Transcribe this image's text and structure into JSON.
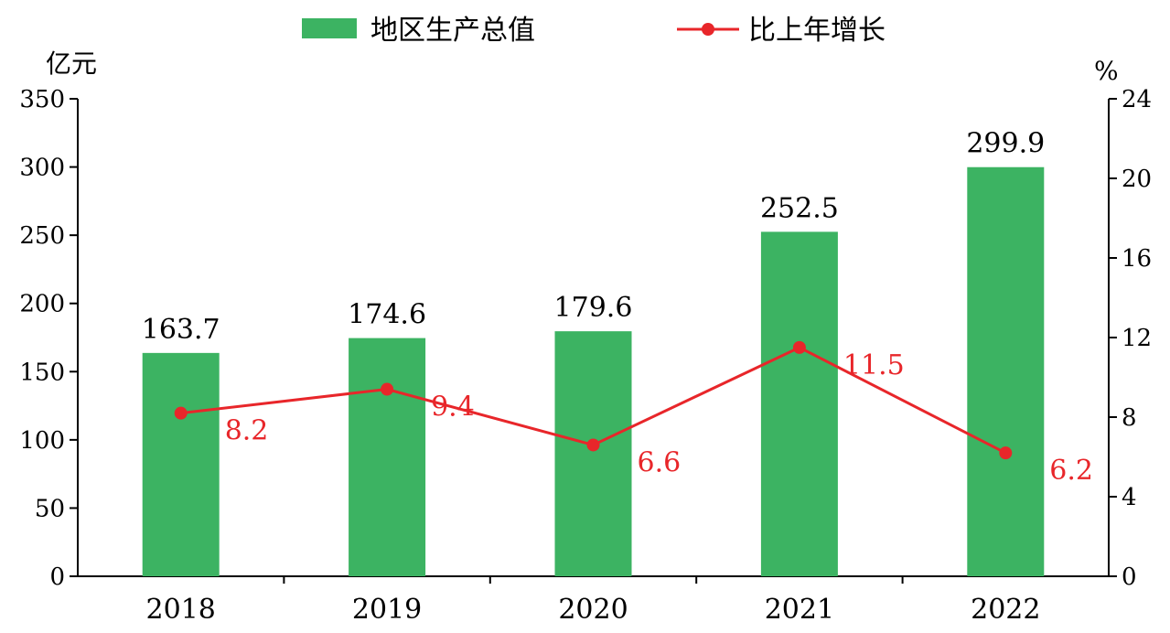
{
  "chart_data": {
    "type": "bar",
    "categories": [
      "2018",
      "2019",
      "2020",
      "2021",
      "2022"
    ],
    "series": [
      {
        "name": "地区生产总值",
        "type": "bar",
        "axis": "left",
        "values": [
          163.7,
          174.6,
          179.6,
          252.5,
          299.9
        ],
        "labels": [
          "163.7",
          "174.6",
          "179.6",
          "252.5",
          "299.9"
        ],
        "color": "#3cb362"
      },
      {
        "name": "比上年增长",
        "type": "line",
        "axis": "right",
        "values": [
          8.2,
          9.4,
          6.6,
          11.5,
          6.2
        ],
        "labels": [
          "8.2",
          "9.4",
          "6.6",
          "11.5",
          "6.2"
        ],
        "color": "#e8262a"
      }
    ],
    "y_left": {
      "unit": "亿元",
      "range": [
        0,
        350
      ],
      "ticks": [
        "0",
        "50",
        "100",
        "150",
        "200",
        "250",
        "300",
        "350"
      ]
    },
    "y_right": {
      "unit": "%",
      "range": [
        0,
        24
      ],
      "ticks": [
        "0",
        "4",
        "8",
        "12",
        "16",
        "20",
        "24"
      ]
    },
    "legend_position": "top-center",
    "grid": false
  }
}
